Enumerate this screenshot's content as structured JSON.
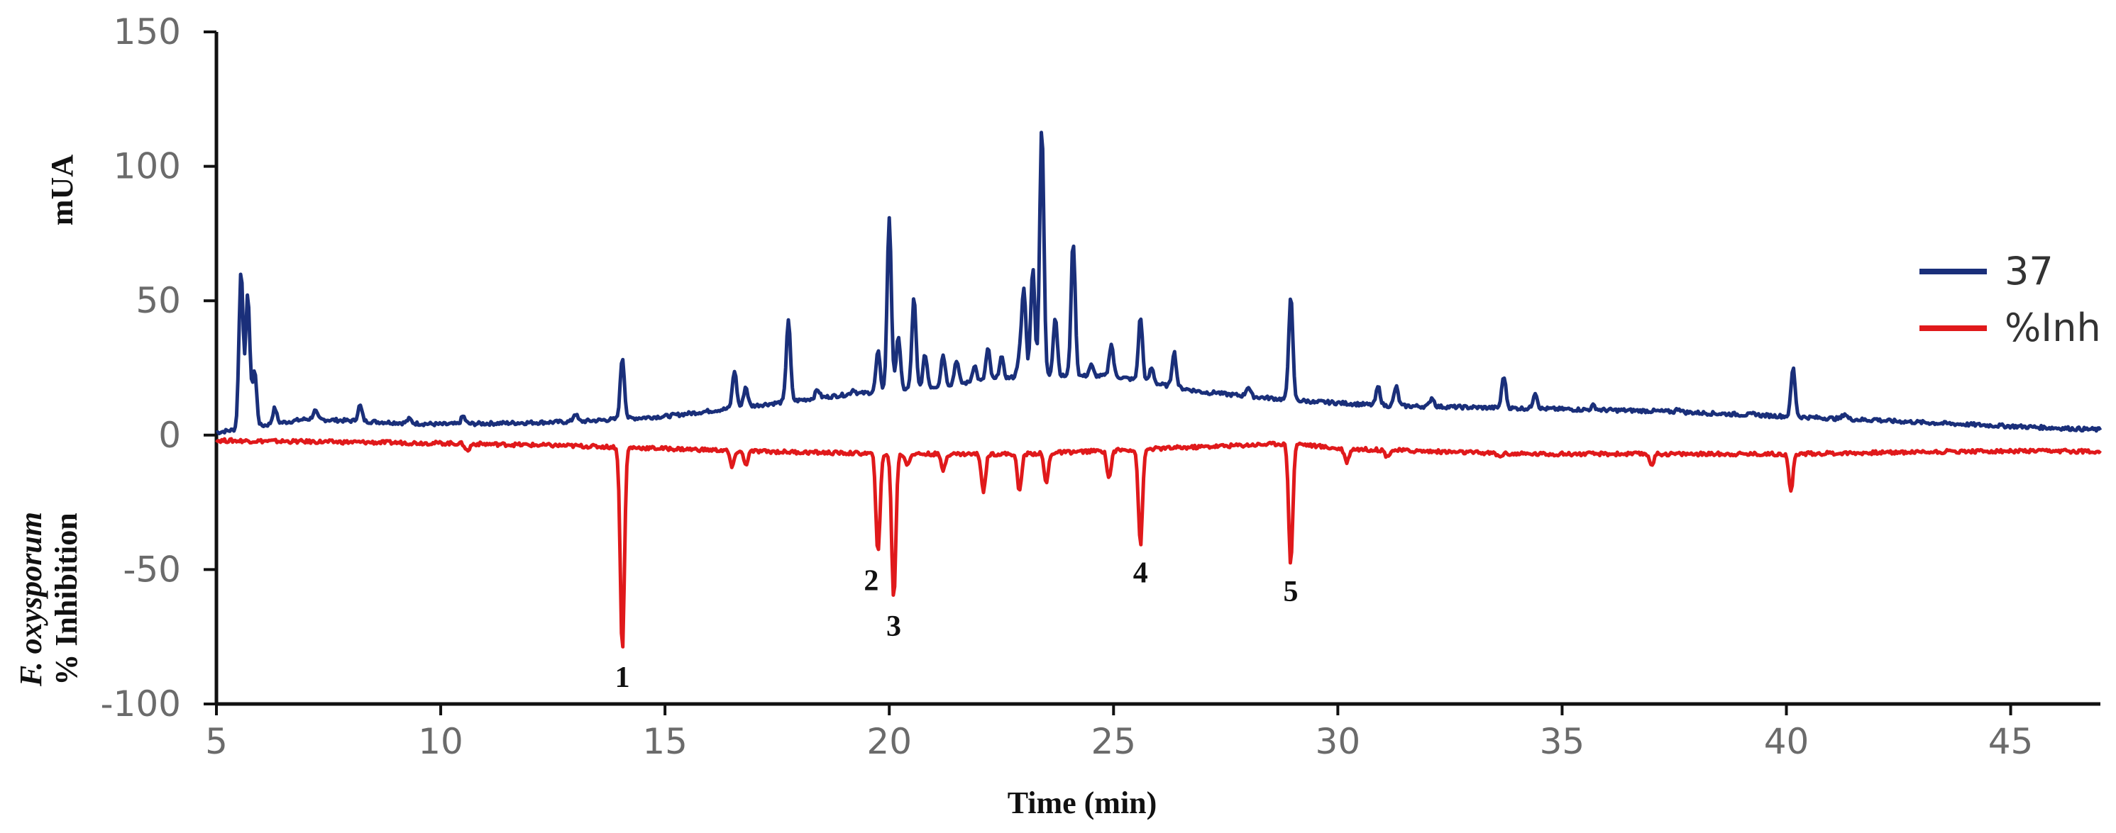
{
  "chart_data": {
    "type": "line",
    "xlabel": "Time (min)",
    "ylabel_top": "mUA",
    "ylabel_bottom_line1": "F. oxysporum",
    "ylabel_bottom_line2": "% Inhibition",
    "xlim": [
      5,
      47
    ],
    "ylim": [
      -100,
      150
    ],
    "x_ticks": [
      5,
      10,
      15,
      20,
      25,
      30,
      35,
      40,
      45
    ],
    "y_ticks": [
      150,
      100,
      50,
      0,
      -50,
      -100
    ],
    "grid": false,
    "legend_position": "right",
    "series": [
      {
        "name": "37",
        "color": "#1a2f7a",
        "baseline": [
          [
            5,
            1
          ],
          [
            7,
            6
          ],
          [
            10,
            4
          ],
          [
            13,
            5
          ],
          [
            15,
            7
          ],
          [
            17,
            11
          ],
          [
            19,
            15
          ],
          [
            21,
            18
          ],
          [
            23,
            22
          ],
          [
            25,
            22
          ],
          [
            27,
            16
          ],
          [
            29,
            13
          ],
          [
            31,
            11
          ],
          [
            34,
            10
          ],
          [
            37,
            9
          ],
          [
            40,
            7
          ],
          [
            44,
            4
          ],
          [
            47,
            2
          ]
        ],
        "peaks": [
          [
            5.55,
            61
          ],
          [
            5.7,
            52
          ],
          [
            5.85,
            24
          ],
          [
            6.3,
            10
          ],
          [
            7.2,
            9
          ],
          [
            8.2,
            11
          ],
          [
            9.3,
            6
          ],
          [
            10.5,
            7
          ],
          [
            13,
            8
          ],
          [
            14.05,
            29
          ],
          [
            15.5,
            8
          ],
          [
            16.55,
            24
          ],
          [
            16.8,
            18
          ],
          [
            17.75,
            43
          ],
          [
            18.4,
            17
          ],
          [
            19.2,
            17
          ],
          [
            19.75,
            31
          ],
          [
            20.0,
            81
          ],
          [
            20.2,
            37
          ],
          [
            20.55,
            51
          ],
          [
            20.8,
            30
          ],
          [
            21.2,
            30
          ],
          [
            21.5,
            28
          ],
          [
            21.9,
            26
          ],
          [
            22.2,
            32
          ],
          [
            22.5,
            29
          ],
          [
            22.9,
            29
          ],
          [
            23.0,
            54
          ],
          [
            23.2,
            62
          ],
          [
            23.4,
            115
          ],
          [
            23.7,
            44
          ],
          [
            24.1,
            72
          ],
          [
            24.5,
            26
          ],
          [
            24.95,
            34
          ],
          [
            25.6,
            44
          ],
          [
            25.85,
            25
          ],
          [
            26.35,
            31
          ],
          [
            27.3,
            16
          ],
          [
            28.0,
            18
          ],
          [
            28.95,
            52
          ],
          [
            29.5,
            12
          ],
          [
            30.9,
            18
          ],
          [
            31.3,
            18
          ],
          [
            32.1,
            14
          ],
          [
            33.7,
            22
          ],
          [
            34.4,
            16
          ],
          [
            35.7,
            11
          ],
          [
            37.6,
            10
          ],
          [
            39.3,
            8
          ],
          [
            40.15,
            25
          ],
          [
            41.3,
            8
          ],
          [
            42,
            6
          ]
        ]
      },
      {
        "name": "%Inh",
        "color": "#e0191b",
        "baseline": [
          [
            5,
            -2
          ],
          [
            10,
            -3
          ],
          [
            13,
            -4
          ],
          [
            17,
            -6
          ],
          [
            20,
            -7
          ],
          [
            23,
            -7
          ],
          [
            26,
            -5
          ],
          [
            29,
            -3
          ],
          [
            30,
            -5
          ],
          [
            34,
            -7
          ],
          [
            40,
            -7
          ],
          [
            44,
            -6
          ],
          [
            47,
            -6
          ]
        ],
        "peaks": [
          [
            10.6,
            -6
          ],
          [
            14.05,
            -80
          ],
          [
            16.5,
            -12
          ],
          [
            16.8,
            -11
          ],
          [
            19.75,
            -44
          ],
          [
            20.1,
            -61
          ],
          [
            20.4,
            -11
          ],
          [
            21.2,
            -13
          ],
          [
            22.1,
            -21
          ],
          [
            22.9,
            -21
          ],
          [
            23.5,
            -18
          ],
          [
            24.9,
            -16
          ],
          [
            25.6,
            -41
          ],
          [
            28.95,
            -48
          ],
          [
            30.2,
            -10
          ],
          [
            31.1,
            -8
          ],
          [
            33.6,
            -8
          ],
          [
            37,
            -11
          ],
          [
            40.1,
            -21
          ]
        ]
      }
    ],
    "annotations": [
      {
        "text": "1",
        "x": 14.05,
        "y": -80
      },
      {
        "text": "2",
        "x": 19.6,
        "y": -44
      },
      {
        "text": "3",
        "x": 20.1,
        "y": -61
      },
      {
        "text": "4",
        "x": 25.6,
        "y": -41
      },
      {
        "text": "5",
        "x": 28.95,
        "y": -48
      }
    ]
  }
}
